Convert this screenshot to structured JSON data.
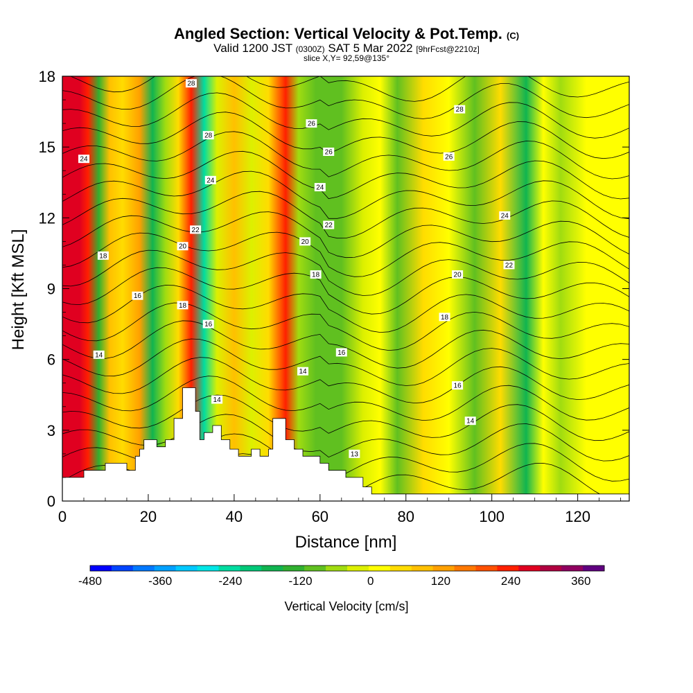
{
  "chart_data": {
    "type": "heatmap",
    "title": "Angled Section: Vertical Velocity & Pot.Temp.",
    "title_suffix": "(C)",
    "subtitle_valid": "Valid 1200 JST",
    "subtitle_z": "(0300Z)",
    "subtitle_date": "SAT 5 Mar 2022",
    "subtitle_fcst": "[9hrFcst@2210z]",
    "slice_label": "slice X,Y= 92,59@135°",
    "xlabel": "Distance [nm]",
    "ylabel": "Height [Kft MSL]",
    "xlim": [
      0,
      132
    ],
    "ylim": [
      0,
      18
    ],
    "x_ticks": [
      0,
      20,
      40,
      60,
      80,
      100,
      120
    ],
    "y_ticks": [
      0,
      3,
      6,
      9,
      12,
      15,
      18
    ],
    "x_tick_labels": [
      "0",
      "20",
      "40",
      "60",
      "80",
      "100",
      "120"
    ],
    "y_tick_labels": [
      "0",
      "3",
      "6",
      "9",
      "12",
      "15",
      "18"
    ],
    "colorbar": {
      "title": "Vertical Velocity [cm/s]",
      "range": [
        -480,
        400
      ],
      "labels": [
        "-480",
        "-360",
        "-240",
        "-120",
        "0",
        "120",
        "240",
        "360"
      ],
      "label_values": [
        -480,
        -360,
        -240,
        -120,
        0,
        120,
        240,
        360
      ],
      "colors": [
        "#0000ff",
        "#0044ff",
        "#0078ff",
        "#00a0ff",
        "#00c8ff",
        "#00e6e6",
        "#00dca0",
        "#00c878",
        "#10b450",
        "#30b030",
        "#60c020",
        "#a0dc10",
        "#dcf000",
        "#ffff00",
        "#ffdc00",
        "#ffc000",
        "#ffa000",
        "#ff7800",
        "#ff5000",
        "#ff2000",
        "#e00020",
        "#b00040",
        "#900060",
        "#600080"
      ]
    },
    "terrain": [
      [
        0,
        1
      ],
      [
        5,
        1
      ],
      [
        5,
        1.3
      ],
      [
        10,
        1.3
      ],
      [
        10,
        1.6
      ],
      [
        15,
        1.6
      ],
      [
        15,
        1.3
      ],
      [
        17,
        1.3
      ],
      [
        17,
        1.9
      ],
      [
        18,
        1.9
      ],
      [
        18,
        2.2
      ],
      [
        19,
        2.2
      ],
      [
        19,
        2.6
      ],
      [
        22,
        2.6
      ],
      [
        22,
        2.3
      ],
      [
        24,
        2.3
      ],
      [
        24,
        2.6
      ],
      [
        26,
        2.6
      ],
      [
        26,
        3.5
      ],
      [
        28,
        3.5
      ],
      [
        28,
        4.8
      ],
      [
        31,
        4.8
      ],
      [
        31,
        3.8
      ],
      [
        32,
        3.8
      ],
      [
        32,
        2.6
      ],
      [
        33,
        2.6
      ],
      [
        33,
        2.9
      ],
      [
        35,
        2.9
      ],
      [
        35,
        3.2
      ],
      [
        37,
        3.2
      ],
      [
        37,
        2.6
      ],
      [
        39,
        2.6
      ],
      [
        39,
        2.2
      ],
      [
        41,
        2.2
      ],
      [
        41,
        1.9
      ],
      [
        44,
        1.9
      ],
      [
        44,
        2.2
      ],
      [
        46,
        2.2
      ],
      [
        46,
        1.9
      ],
      [
        48,
        1.9
      ],
      [
        48,
        2.2
      ],
      [
        49,
        2.2
      ],
      [
        49,
        3.5
      ],
      [
        52,
        3.5
      ],
      [
        52,
        2.6
      ],
      [
        54,
        2.6
      ],
      [
        54,
        2.2
      ],
      [
        56,
        2.2
      ],
      [
        56,
        1.9
      ],
      [
        60,
        1.9
      ],
      [
        60,
        1.6
      ],
      [
        62,
        1.6
      ],
      [
        62,
        1.3
      ],
      [
        66,
        1.3
      ],
      [
        66,
        1.0
      ],
      [
        70,
        1.0
      ],
      [
        70,
        0.6
      ],
      [
        72,
        0.6
      ],
      [
        72,
        0.3
      ],
      [
        132,
        0.3
      ]
    ],
    "velocity_bands": [
      {
        "x": 4,
        "v": 260
      },
      {
        "x": 6,
        "v": 220
      },
      {
        "x": 8.5,
        "v": -140
      },
      {
        "x": 11,
        "v": 80
      },
      {
        "x": 14,
        "v": 60
      },
      {
        "x": 18,
        "v": 120
      },
      {
        "x": 21,
        "v": -180
      },
      {
        "x": 24,
        "v": -60
      },
      {
        "x": 27,
        "v": 40
      },
      {
        "x": 30,
        "v": 220
      },
      {
        "x": 33,
        "v": -260
      },
      {
        "x": 36,
        "v": -40
      },
      {
        "x": 40,
        "v": 80
      },
      {
        "x": 44,
        "v": -40
      },
      {
        "x": 48,
        "v": 60
      },
      {
        "x": 52,
        "v": 220
      },
      {
        "x": 55,
        "v": -60
      },
      {
        "x": 59,
        "v": -110
      },
      {
        "x": 65,
        "v": -100
      },
      {
        "x": 70,
        "v": -40
      },
      {
        "x": 74,
        "v": 30
      },
      {
        "x": 78,
        "v": -100
      },
      {
        "x": 84,
        "v": 40
      },
      {
        "x": 90,
        "v": 30
      },
      {
        "x": 96,
        "v": -80
      },
      {
        "x": 102,
        "v": 40
      },
      {
        "x": 108,
        "v": -160
      },
      {
        "x": 112,
        "v": 20
      },
      {
        "x": 116,
        "v": -60
      },
      {
        "x": 122,
        "v": 30
      },
      {
        "x": 128,
        "v": 20
      }
    ],
    "isentrope_labels": [
      {
        "text": "28",
        "x": 30,
        "y": 17.7
      },
      {
        "text": "28",
        "x": 34,
        "y": 15.5
      },
      {
        "text": "28",
        "x": 92.5,
        "y": 16.6
      },
      {
        "text": "26",
        "x": 58,
        "y": 16.0
      },
      {
        "text": "26",
        "x": 62,
        "y": 14.8
      },
      {
        "text": "26",
        "x": 90,
        "y": 14.6
      },
      {
        "text": "24",
        "x": 5,
        "y": 14.5
      },
      {
        "text": "24",
        "x": 34.5,
        "y": 13.6
      },
      {
        "text": "24",
        "x": 60,
        "y": 13.3
      },
      {
        "text": "24",
        "x": 103,
        "y": 12.1
      },
      {
        "text": "22",
        "x": 31,
        "y": 11.5
      },
      {
        "text": "22",
        "x": 62,
        "y": 11.7
      },
      {
        "text": "22",
        "x": 104,
        "y": 10.0
      },
      {
        "text": "20",
        "x": 28,
        "y": 10.8
      },
      {
        "text": "20",
        "x": 56.5,
        "y": 11.0
      },
      {
        "text": "20",
        "x": 92,
        "y": 9.6
      },
      {
        "text": "18",
        "x": 9.5,
        "y": 10.4
      },
      {
        "text": "18",
        "x": 28,
        "y": 8.3
      },
      {
        "text": "18",
        "x": 59,
        "y": 9.6
      },
      {
        "text": "18",
        "x": 89,
        "y": 7.8
      },
      {
        "text": "16",
        "x": 17.5,
        "y": 8.7
      },
      {
        "text": "16",
        "x": 34,
        "y": 7.5
      },
      {
        "text": "16",
        "x": 65,
        "y": 6.3
      },
      {
        "text": "16",
        "x": 92,
        "y": 4.9
      },
      {
        "text": "14",
        "x": 8.5,
        "y": 6.2
      },
      {
        "text": "14",
        "x": 36,
        "y": 4.3
      },
      {
        "text": "14",
        "x": 56,
        "y": 5.5
      },
      {
        "text": "14",
        "x": 95,
        "y": 3.4
      },
      {
        "text": "13",
        "x": 68,
        "y": 2.0
      }
    ]
  }
}
